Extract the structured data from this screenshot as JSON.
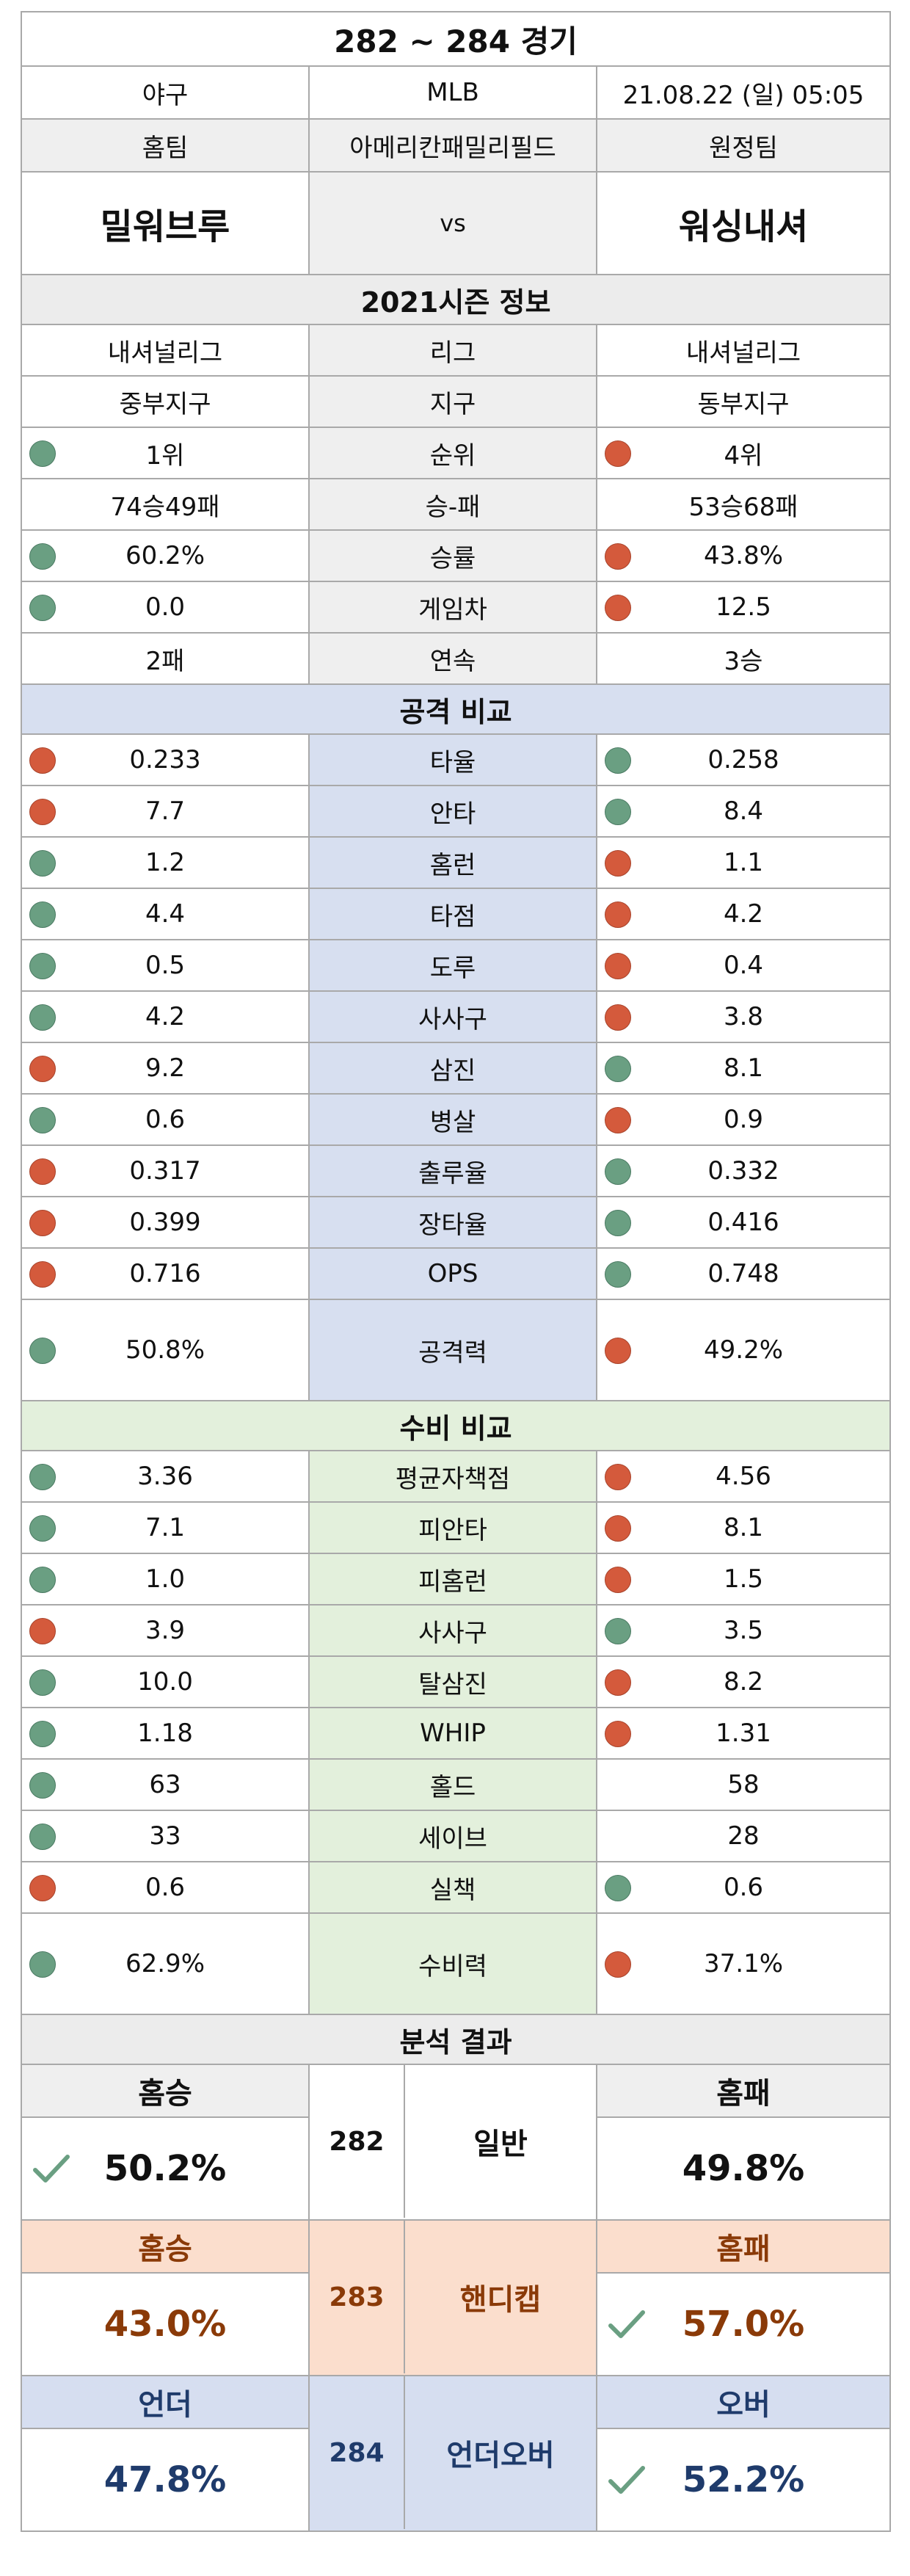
{
  "title": "282 ~ 284 경기",
  "meta": {
    "sport": "야구",
    "league": "MLB",
    "datetime": "21.08.22 (일) 05:05"
  },
  "header": {
    "home_label": "홈팀",
    "stadium": "아메리칸패밀리필드",
    "away_label": "원정팀"
  },
  "teams": {
    "home": "밀워브루",
    "vs": "vs",
    "away": "워싱내셔"
  },
  "season": {
    "title": "2021시즌 정보",
    "rows": [
      {
        "label": "리그",
        "home": "내셔널리그",
        "away": "내셔널리그",
        "home_dot": "",
        "away_dot": ""
      },
      {
        "label": "지구",
        "home": "중부지구",
        "away": "동부지구",
        "home_dot": "",
        "away_dot": ""
      },
      {
        "label": "순위",
        "home": "1위",
        "away": "4위",
        "home_dot": "green",
        "away_dot": "red"
      },
      {
        "label": "승-패",
        "home": "74승49패",
        "away": "53승68패",
        "home_dot": "",
        "away_dot": ""
      },
      {
        "label": "승률",
        "home": "60.2%",
        "away": "43.8%",
        "home_dot": "green",
        "away_dot": "red"
      },
      {
        "label": "게임차",
        "home": "0.0",
        "away": "12.5",
        "home_dot": "green",
        "away_dot": "red"
      },
      {
        "label": "연속",
        "home": "2패",
        "away": "3승",
        "home_dot": "",
        "away_dot": ""
      }
    ]
  },
  "attack": {
    "title": "공격 비교",
    "rows": [
      {
        "label": "타율",
        "home": "0.233",
        "away": "0.258",
        "home_dot": "red",
        "away_dot": "green"
      },
      {
        "label": "안타",
        "home": "7.7",
        "away": "8.4",
        "home_dot": "red",
        "away_dot": "green"
      },
      {
        "label": "홈런",
        "home": "1.2",
        "away": "1.1",
        "home_dot": "green",
        "away_dot": "red"
      },
      {
        "label": "타점",
        "home": "4.4",
        "away": "4.2",
        "home_dot": "green",
        "away_dot": "red"
      },
      {
        "label": "도루",
        "home": "0.5",
        "away": "0.4",
        "home_dot": "green",
        "away_dot": "red"
      },
      {
        "label": "사사구",
        "home": "4.2",
        "away": "3.8",
        "home_dot": "green",
        "away_dot": "red"
      },
      {
        "label": "삼진",
        "home": "9.2",
        "away": "8.1",
        "home_dot": "red",
        "away_dot": "green"
      },
      {
        "label": "병살",
        "home": "0.6",
        "away": "0.9",
        "home_dot": "green",
        "away_dot": "red"
      },
      {
        "label": "출루율",
        "home": "0.317",
        "away": "0.332",
        "home_dot": "red",
        "away_dot": "green"
      },
      {
        "label": "장타율",
        "home": "0.399",
        "away": "0.416",
        "home_dot": "red",
        "away_dot": "green"
      },
      {
        "label": "OPS",
        "home": "0.716",
        "away": "0.748",
        "home_dot": "red",
        "away_dot": "green"
      },
      {
        "label": "공격력",
        "home": "50.8%",
        "away": "49.2%",
        "home_dot": "green",
        "away_dot": "red",
        "tall": true
      }
    ]
  },
  "defense": {
    "title": "수비 비교",
    "rows": [
      {
        "label": "평균자책점",
        "home": "3.36",
        "away": "4.56",
        "home_dot": "green",
        "away_dot": "red"
      },
      {
        "label": "피안타",
        "home": "7.1",
        "away": "8.1",
        "home_dot": "green",
        "away_dot": "red"
      },
      {
        "label": "피홈런",
        "home": "1.0",
        "away": "1.5",
        "home_dot": "green",
        "away_dot": "red"
      },
      {
        "label": "사사구",
        "home": "3.9",
        "away": "3.5",
        "home_dot": "red",
        "away_dot": "green"
      },
      {
        "label": "탈삼진",
        "home": "10.0",
        "away": "8.2",
        "home_dot": "green",
        "away_dot": "red"
      },
      {
        "label": "WHIP",
        "home": "1.18",
        "away": "1.31",
        "home_dot": "green",
        "away_dot": "red"
      },
      {
        "label": "홀드",
        "home": "63",
        "away": "58",
        "home_dot": "green",
        "away_dot": ""
      },
      {
        "label": "세이브",
        "home": "33",
        "away": "28",
        "home_dot": "green",
        "away_dot": ""
      },
      {
        "label": "실책",
        "home": "0.6",
        "away": "0.6",
        "home_dot": "red",
        "away_dot": "green"
      },
      {
        "label": "수비력",
        "home": "62.9%",
        "away": "37.1%",
        "home_dot": "green",
        "away_dot": "red",
        "tall": true
      }
    ]
  },
  "analysis": {
    "title": "분석 결과",
    "groups": [
      {
        "game": "282",
        "type": "일반",
        "left_head": "홈승",
        "left_value": "50.2%",
        "right_head": "홈패",
        "right_value": "49.8%",
        "check": "left"
      },
      {
        "game": "283",
        "type": "핸디캡",
        "left_head": "홈승",
        "left_value": "43.0%",
        "right_head": "홈패",
        "right_value": "57.0%",
        "check": "right"
      },
      {
        "game": "284",
        "type": "언더오버",
        "left_head": "언더",
        "left_value": "47.8%",
        "right_head": "오버",
        "right_value": "52.2%",
        "check": "right"
      }
    ]
  },
  "colors": {
    "green_dot": "#6a9f82",
    "red_dot": "#d45a3c",
    "check": "#6a9f82"
  }
}
